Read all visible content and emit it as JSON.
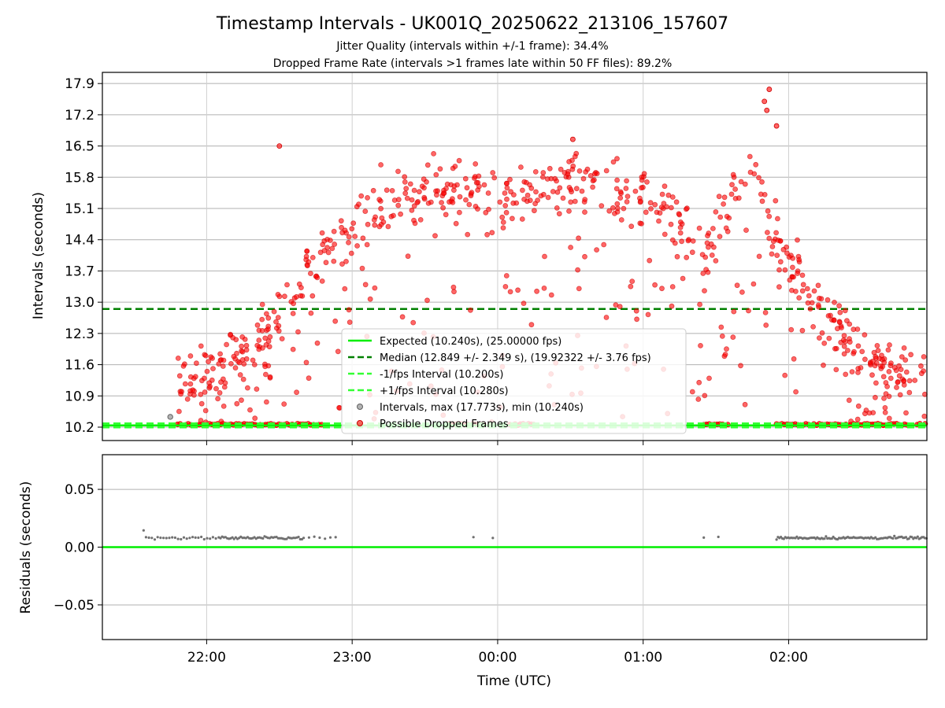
{
  "title": "Timestamp Intervals - UK001Q_20250622_213106_157607",
  "subtitle_1": "Jitter Quality (intervals within +/-1 frame): 34.4%",
  "subtitle_2": "Dropped Frame Rate (intervals >1 frames late within 50 FF files): 89.2%",
  "colors": {
    "expected": "#00ee00",
    "median": "#008000",
    "fps_interval": "#33ff33",
    "dropped": "#ff0000",
    "intervals": "#808080",
    "residual_points": "#707070",
    "grid": "#b0b0b0"
  },
  "chart_data": [
    {
      "type": "scatter",
      "panel": "top",
      "ylabel": "Intervals (seconds)",
      "yticks": [
        "10.2",
        "10.9",
        "11.6",
        "12.3",
        "13.0",
        "13.7",
        "14.4",
        "15.1",
        "15.8",
        "16.5",
        "17.2",
        "17.9"
      ],
      "ylim": [
        9.9,
        18.15
      ],
      "xlim": [
        "21:17",
        "02:57"
      ],
      "xticks": [
        "22:00",
        "23:00",
        "00:00",
        "01:00",
        "02:00"
      ],
      "grid": true,
      "legend_position": "lower-center",
      "series": [
        {
          "name": "Expected (10.240s), (25.00000 fps)",
          "kind": "hline",
          "y": 10.24
        },
        {
          "name": "Median (12.849 +/- 2.349 s), (19.92322 +/- 3.76 fps)",
          "kind": "hline",
          "y": 12.849
        },
        {
          "name": "-1/fps Interval (10.200s)",
          "kind": "hline",
          "y": 10.2
        },
        {
          "name": "+1/fps Interval (10.280s)",
          "kind": "hline",
          "y": 10.28
        },
        {
          "name": "Intervals, max (17.773s), min (10.240s)",
          "kind": "points",
          "max": 17.773,
          "min": 10.24
        },
        {
          "name": "Possible Dropped Frames",
          "kind": "points",
          "envelope": [
            [
              "21:50",
              11.2
            ],
            [
              "22:20",
              12.0
            ],
            [
              "22:40",
              13.4
            ],
            [
              "22:55",
              14.4
            ],
            [
              "23:10",
              15.1
            ],
            [
              "23:30",
              15.5
            ],
            [
              "23:45",
              15.6
            ],
            [
              "00:00",
              15.3
            ],
            [
              "00:15",
              15.6
            ],
            [
              "00:30",
              15.8
            ],
            [
              "00:45",
              15.5
            ],
            [
              "01:00",
              15.4
            ],
            [
              "01:15",
              14.9
            ],
            [
              "01:25",
              14.2
            ],
            [
              "01:35",
              15.2
            ],
            [
              "01:45",
              16.1
            ],
            [
              "01:55",
              14.4
            ],
            [
              "02:10",
              13.0
            ],
            [
              "02:25",
              12.2
            ],
            [
              "02:40",
              11.5
            ]
          ]
        }
      ]
    },
    {
      "type": "scatter",
      "panel": "bottom",
      "ylabel": "Residuals (seconds)",
      "xlabel": "Time (UTC)",
      "yticks": [
        "0.05",
        "0.00",
        "−0.05"
      ],
      "ylim": [
        -0.08,
        0.08
      ],
      "xlim": [
        "21:17",
        "02:57"
      ],
      "xticks": [
        "22:00",
        "23:00",
        "00:00",
        "01:00",
        "02:00"
      ],
      "grid": true,
      "series": [
        {
          "name": "zero",
          "kind": "hline",
          "y": 0.0
        },
        {
          "name": "residuals",
          "kind": "points",
          "typical": 0.008,
          "clusters": [
            [
              "21:35",
              "22:05"
            ],
            [
              "22:05",
              "22:40"
            ],
            [
              "22:40",
              "22:55"
            ],
            [
              "23:50",
              "00:08"
            ],
            [
              "01:22",
              "01:32"
            ],
            [
              "01:55",
              "02:57"
            ]
          ]
        }
      ]
    }
  ]
}
